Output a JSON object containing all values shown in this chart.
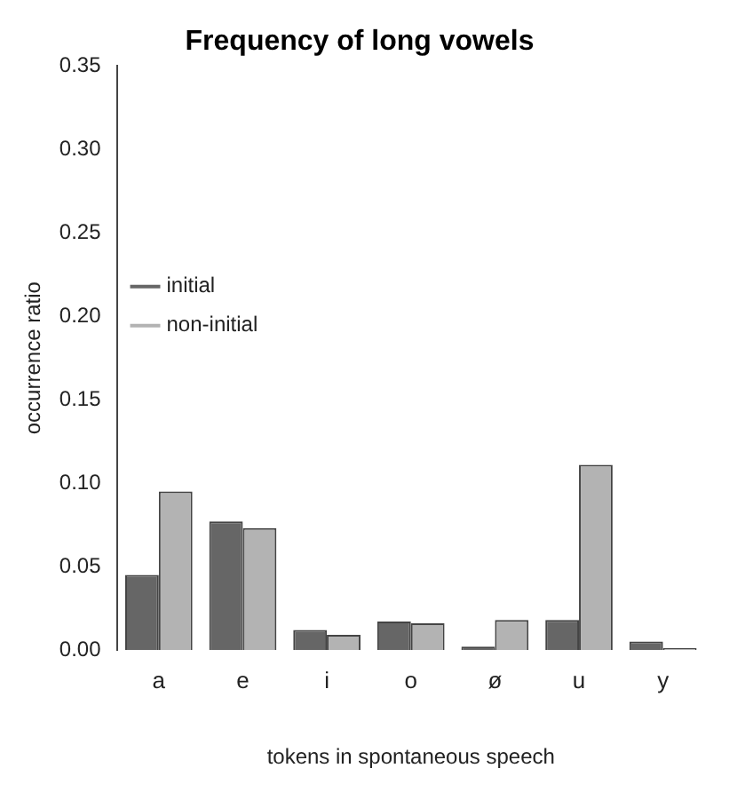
{
  "chart_data": {
    "type": "bar",
    "title": "Frequency of long vowels",
    "xlabel": "tokens in spontaneous speech",
    "ylabel": "occurrence ratio",
    "categories": [
      "a",
      "e",
      "i",
      "o",
      "ø",
      "u",
      "y"
    ],
    "series": [
      {
        "name": "initial",
        "color": "#666666",
        "values": [
          0.045,
          0.077,
          0.012,
          0.017,
          0.002,
          0.018,
          0.005
        ]
      },
      {
        "name": "non-initial",
        "color": "#b3b3b3",
        "values": [
          0.095,
          0.073,
          0.009,
          0.016,
          0.018,
          0.111,
          0.001
        ]
      }
    ],
    "ylim": [
      0,
      0.35
    ],
    "yticks": [
      {
        "value": 0,
        "label": "0.00"
      },
      {
        "value": 0.05,
        "label": "0.05"
      },
      {
        "value": 0.1,
        "label": "0.10"
      },
      {
        "value": 0.15,
        "label": "0.15"
      },
      {
        "value": 0.2,
        "label": "0.20"
      },
      {
        "value": 0.25,
        "label": "0.25"
      },
      {
        "value": 0.3,
        "label": "0.30"
      },
      {
        "value": 0.35,
        "label": "0.35"
      }
    ],
    "grid": false,
    "legend": "top"
  }
}
